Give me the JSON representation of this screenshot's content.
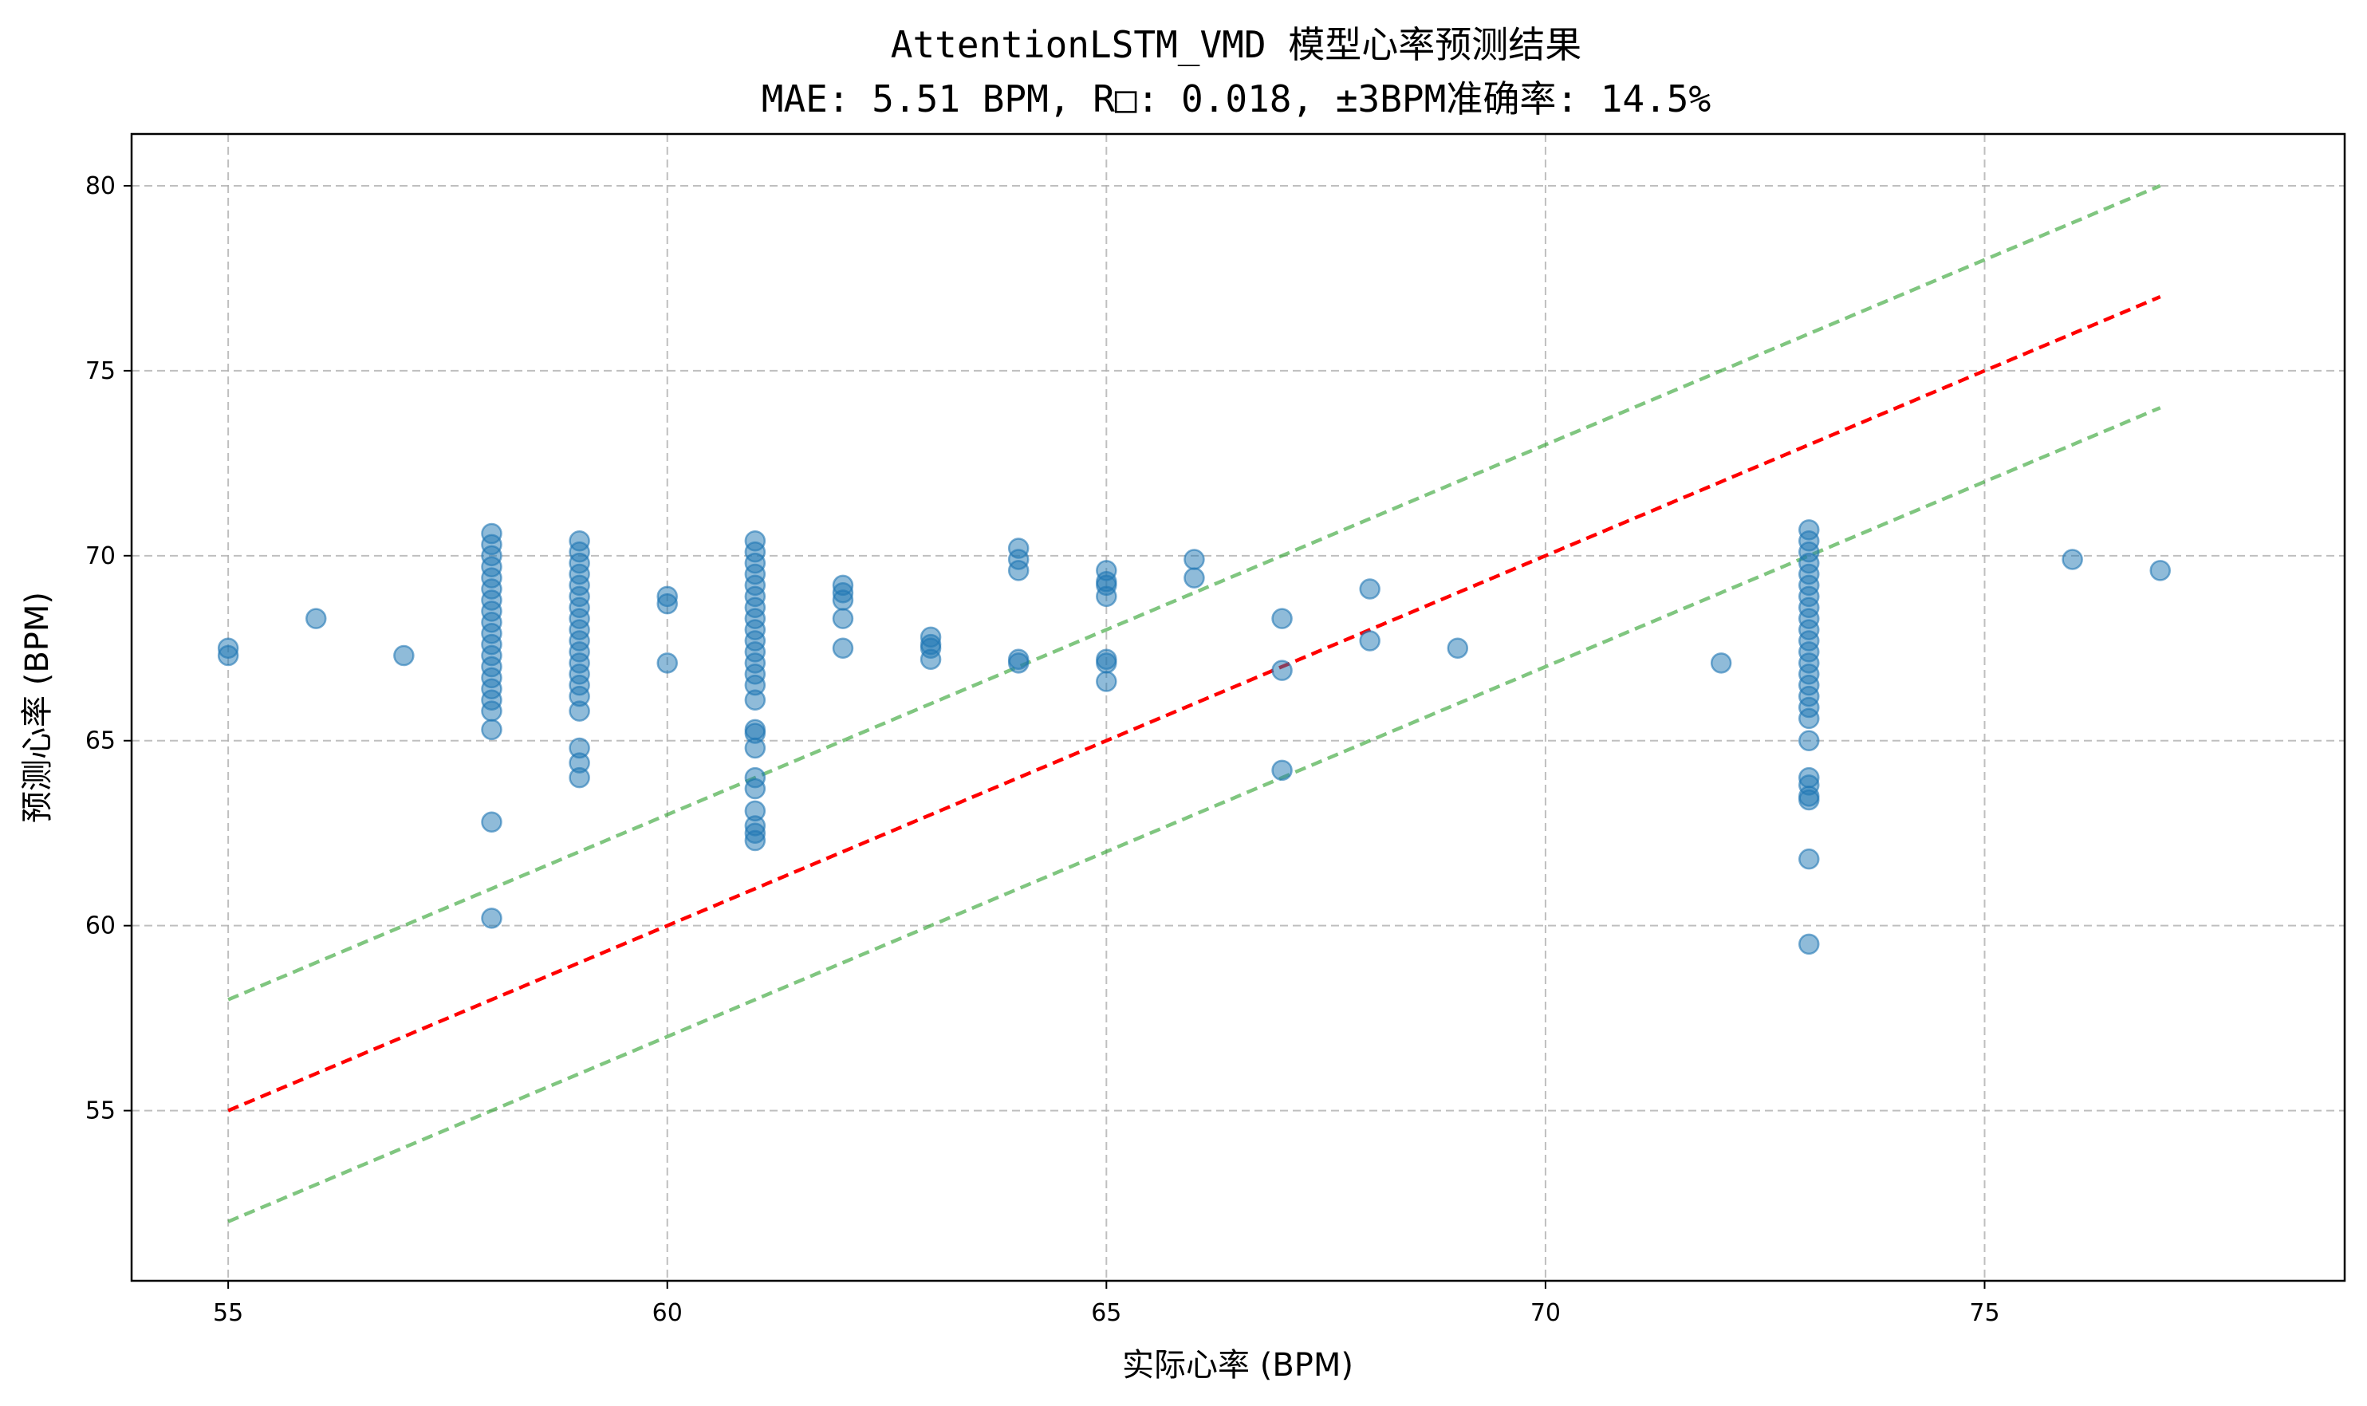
{
  "chart_data": {
    "type": "scatter",
    "title": "AttentionLSTM_VMD 模型心率预测结果",
    "subtitle": "MAE: 5.51 BPM, R□: 0.018, ±3BPM准确率: 14.5%",
    "xlabel": "实际心率 (BPM)",
    "ylabel": "预测心率 (BPM)",
    "xlim": [
      53.9,
      79.1
    ],
    "ylim": [
      50.4,
      81.4
    ],
    "xticks": [
      55,
      60,
      65,
      70,
      75
    ],
    "yticks": [
      55,
      60,
      65,
      70,
      75,
      80
    ],
    "grid": true,
    "colors": {
      "points": "#1f77b4",
      "ideal_line": "#ff0000",
      "tolerance_line": "#2ca02c"
    },
    "reference_lines": [
      {
        "role": "ideal",
        "x": [
          55,
          77
        ],
        "y": [
          55,
          77
        ]
      },
      {
        "role": "upper",
        "x": [
          55,
          77
        ],
        "y": [
          58,
          80
        ]
      },
      {
        "role": "lower",
        "x": [
          55,
          77
        ],
        "y": [
          52,
          74
        ]
      }
    ],
    "points": [
      {
        "x": 55,
        "y": 67.5
      },
      {
        "x": 55,
        "y": 67.3
      },
      {
        "x": 56,
        "y": 68.3
      },
      {
        "x": 57,
        "y": 67.3
      },
      {
        "x": 58,
        "y": 70.6
      },
      {
        "x": 58,
        "y": 70.3
      },
      {
        "x": 58,
        "y": 70.0
      },
      {
        "x": 58,
        "y": 69.7
      },
      {
        "x": 58,
        "y": 69.4
      },
      {
        "x": 58,
        "y": 69.1
      },
      {
        "x": 58,
        "y": 68.8
      },
      {
        "x": 58,
        "y": 68.5
      },
      {
        "x": 58,
        "y": 68.2
      },
      {
        "x": 58,
        "y": 67.9
      },
      {
        "x": 58,
        "y": 67.6
      },
      {
        "x": 58,
        "y": 67.3
      },
      {
        "x": 58,
        "y": 67.0
      },
      {
        "x": 58,
        "y": 66.7
      },
      {
        "x": 58,
        "y": 66.4
      },
      {
        "x": 58,
        "y": 66.1
      },
      {
        "x": 58,
        "y": 65.8
      },
      {
        "x": 58,
        "y": 65.3
      },
      {
        "x": 58,
        "y": 62.8
      },
      {
        "x": 58,
        "y": 60.2
      },
      {
        "x": 59,
        "y": 70.4
      },
      {
        "x": 59,
        "y": 70.1
      },
      {
        "x": 59,
        "y": 69.8
      },
      {
        "x": 59,
        "y": 69.5
      },
      {
        "x": 59,
        "y": 69.2
      },
      {
        "x": 59,
        "y": 68.9
      },
      {
        "x": 59,
        "y": 68.6
      },
      {
        "x": 59,
        "y": 68.3
      },
      {
        "x": 59,
        "y": 68.0
      },
      {
        "x": 59,
        "y": 67.7
      },
      {
        "x": 59,
        "y": 67.4
      },
      {
        "x": 59,
        "y": 67.1
      },
      {
        "x": 59,
        "y": 66.8
      },
      {
        "x": 59,
        "y": 66.5
      },
      {
        "x": 59,
        "y": 66.2
      },
      {
        "x": 59,
        "y": 65.8
      },
      {
        "x": 59,
        "y": 64.8
      },
      {
        "x": 59,
        "y": 64.4
      },
      {
        "x": 59,
        "y": 64.0
      },
      {
        "x": 60,
        "y": 68.9
      },
      {
        "x": 60,
        "y": 68.7
      },
      {
        "x": 60,
        "y": 67.1
      },
      {
        "x": 61,
        "y": 70.4
      },
      {
        "x": 61,
        "y": 70.1
      },
      {
        "x": 61,
        "y": 69.8
      },
      {
        "x": 61,
        "y": 69.5
      },
      {
        "x": 61,
        "y": 69.2
      },
      {
        "x": 61,
        "y": 68.9
      },
      {
        "x": 61,
        "y": 68.6
      },
      {
        "x": 61,
        "y": 68.3
      },
      {
        "x": 61,
        "y": 68.0
      },
      {
        "x": 61,
        "y": 67.7
      },
      {
        "x": 61,
        "y": 67.4
      },
      {
        "x": 61,
        "y": 67.1
      },
      {
        "x": 61,
        "y": 66.8
      },
      {
        "x": 61,
        "y": 66.5
      },
      {
        "x": 61,
        "y": 66.1
      },
      {
        "x": 61,
        "y": 65.3
      },
      {
        "x": 61,
        "y": 65.2
      },
      {
        "x": 61,
        "y": 64.8
      },
      {
        "x": 61,
        "y": 64.0
      },
      {
        "x": 61,
        "y": 63.7
      },
      {
        "x": 61,
        "y": 63.1
      },
      {
        "x": 61,
        "y": 62.7
      },
      {
        "x": 61,
        "y": 62.5
      },
      {
        "x": 61,
        "y": 62.3
      },
      {
        "x": 62,
        "y": 69.2
      },
      {
        "x": 62,
        "y": 69.0
      },
      {
        "x": 62,
        "y": 68.8
      },
      {
        "x": 62,
        "y": 68.3
      },
      {
        "x": 62,
        "y": 67.5
      },
      {
        "x": 63,
        "y": 67.8
      },
      {
        "x": 63,
        "y": 67.6
      },
      {
        "x": 63,
        "y": 67.5
      },
      {
        "x": 63,
        "y": 67.2
      },
      {
        "x": 64,
        "y": 70.2
      },
      {
        "x": 64,
        "y": 69.9
      },
      {
        "x": 64,
        "y": 69.6
      },
      {
        "x": 64,
        "y": 67.2
      },
      {
        "x": 64,
        "y": 67.1
      },
      {
        "x": 65,
        "y": 69.6
      },
      {
        "x": 65,
        "y": 69.3
      },
      {
        "x": 65,
        "y": 69.2
      },
      {
        "x": 65,
        "y": 68.9
      },
      {
        "x": 65,
        "y": 67.2
      },
      {
        "x": 65,
        "y": 67.1
      },
      {
        "x": 65,
        "y": 66.6
      },
      {
        "x": 66,
        "y": 69.9
      },
      {
        "x": 66,
        "y": 69.4
      },
      {
        "x": 67,
        "y": 68.3
      },
      {
        "x": 67,
        "y": 66.9
      },
      {
        "x": 67,
        "y": 64.2
      },
      {
        "x": 68,
        "y": 69.1
      },
      {
        "x": 68,
        "y": 67.7
      },
      {
        "x": 69,
        "y": 67.5
      },
      {
        "x": 72,
        "y": 67.1
      },
      {
        "x": 73,
        "y": 70.7
      },
      {
        "x": 73,
        "y": 70.4
      },
      {
        "x": 73,
        "y": 70.1
      },
      {
        "x": 73,
        "y": 69.8
      },
      {
        "x": 73,
        "y": 69.5
      },
      {
        "x": 73,
        "y": 69.2
      },
      {
        "x": 73,
        "y": 68.9
      },
      {
        "x": 73,
        "y": 68.6
      },
      {
        "x": 73,
        "y": 68.3
      },
      {
        "x": 73,
        "y": 68.0
      },
      {
        "x": 73,
        "y": 67.7
      },
      {
        "x": 73,
        "y": 67.4
      },
      {
        "x": 73,
        "y": 67.1
      },
      {
        "x": 73,
        "y": 66.8
      },
      {
        "x": 73,
        "y": 66.5
      },
      {
        "x": 73,
        "y": 66.2
      },
      {
        "x": 73,
        "y": 65.9
      },
      {
        "x": 73,
        "y": 65.6
      },
      {
        "x": 73,
        "y": 65.0
      },
      {
        "x": 73,
        "y": 64.0
      },
      {
        "x": 73,
        "y": 63.8
      },
      {
        "x": 73,
        "y": 63.5
      },
      {
        "x": 73,
        "y": 63.4
      },
      {
        "x": 73,
        "y": 61.8
      },
      {
        "x": 73,
        "y": 59.5
      },
      {
        "x": 76,
        "y": 69.9
      },
      {
        "x": 77,
        "y": 69.6
      }
    ]
  }
}
